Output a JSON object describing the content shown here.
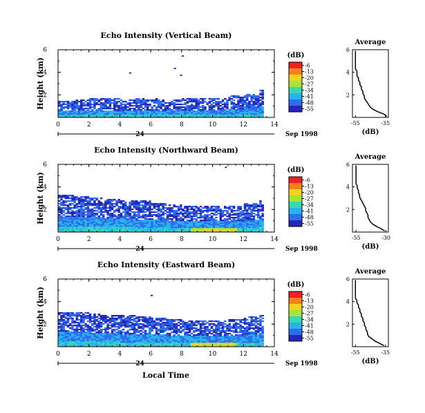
{
  "chart_data": [
    {
      "type": "heatmap",
      "title": "Echo Intensity (Vertical Beam)",
      "ylabel": "Height (km)",
      "x_ticks": [
        "0",
        "2",
        "4",
        "6",
        "8",
        "10",
        "12",
        "14"
      ],
      "y_ticks": [
        "2",
        "4",
        "6"
      ],
      "xlim": [
        0,
        14
      ],
      "ylim": [
        0,
        6
      ],
      "date_day": "24",
      "date_label": "Sep 1998",
      "data_end_hour": 13.2,
      "echo_top_km": [
        1.4,
        1.5,
        1.6,
        1.6,
        1.5,
        1.6,
        1.6,
        1.5,
        1.6,
        1.6,
        1.6,
        1.9,
        2.0,
        2.4
      ],
      "colorbar": {
        "unit": "(dB)",
        "ticks": [
          "-6",
          "-13",
          "-20",
          "-27",
          "-34",
          "-41",
          "-48",
          "-55"
        ]
      },
      "profile": {
        "title": "Average",
        "xlabel": "(dB)",
        "x_ticks": [
          "-55",
          "-35"
        ],
        "y_ticks": [
          "2",
          "4",
          "6"
        ],
        "xlim": [
          -57,
          -33
        ],
        "ylim": [
          0,
          6
        ],
        "height_km": [
          0.1,
          0.3,
          0.5,
          0.7,
          0.9,
          1.1,
          1.3,
          1.5,
          1.7,
          1.9,
          2.1,
          2.3,
          2.5,
          2.7,
          2.9,
          3.1,
          3.3,
          3.5,
          3.7,
          3.9,
          4.1,
          4.3,
          4.5,
          4.7,
          4.9,
          5.1,
          5.3,
          5.5,
          5.7,
          5.9
        ],
        "db": [
          -34,
          -36,
          -40,
          -43,
          -45,
          -46,
          -47,
          -48,
          -49,
          -49,
          -50,
          -50,
          -51,
          -51,
          -52,
          -52,
          -53,
          -53,
          -54,
          -54,
          -54,
          -55,
          -55,
          -55,
          -55,
          -55,
          -55,
          -55,
          -55,
          -55
        ]
      }
    },
    {
      "type": "heatmap",
      "title": "Echo Intensity (Northward Beam)",
      "ylabel": "Height (km)",
      "x_ticks": [
        "0",
        "2",
        "4",
        "6",
        "8",
        "10",
        "12",
        "14"
      ],
      "y_ticks": [
        "2",
        "4",
        "6"
      ],
      "xlim": [
        0,
        14
      ],
      "ylim": [
        0,
        6
      ],
      "date_day": "24",
      "date_label": "Sep 1998",
      "data_end_hour": 13.2,
      "echo_top_km": [
        3.2,
        3.1,
        3.0,
        2.9,
        2.8,
        2.7,
        2.5,
        2.4,
        2.3,
        2.3,
        2.3,
        2.3,
        2.5,
        2.8
      ],
      "colorbar": {
        "unit": "(dB)",
        "ticks": [
          "-6",
          "-13",
          "-20",
          "-27",
          "-34",
          "-41",
          "-48",
          "-55"
        ]
      },
      "profile": {
        "title": "Average",
        "xlabel": "(dB)",
        "x_ticks": [
          "-55",
          "-30"
        ],
        "y_ticks": [
          "2",
          "4",
          "6"
        ],
        "xlim": [
          -58,
          -28
        ],
        "ylim": [
          0,
          6
        ],
        "height_km": [
          0.1,
          0.3,
          0.5,
          0.7,
          0.9,
          1.1,
          1.3,
          1.5,
          1.7,
          1.9,
          2.1,
          2.3,
          2.5,
          2.7,
          2.9,
          3.1,
          3.3,
          3.5,
          3.7,
          3.9,
          4.1,
          4.3,
          4.5,
          4.7,
          4.9,
          5.1,
          5.3,
          5.5,
          5.7,
          5.9
        ],
        "db": [
          -31,
          -34,
          -38,
          -41,
          -43,
          -44,
          -45,
          -45,
          -46,
          -47,
          -47,
          -48,
          -49,
          -50,
          -51,
          -52,
          -52,
          -53,
          -53,
          -54,
          -54,
          -55,
          -55,
          -55,
          -55,
          -55,
          -55,
          -55,
          -55,
          -55
        ]
      }
    },
    {
      "type": "heatmap",
      "title": "Echo Intensity (Eastward Beam)",
      "ylabel": "Height (km)",
      "x_ticks": [
        "0",
        "2",
        "4",
        "6",
        "8",
        "10",
        "12",
        "14"
      ],
      "y_ticks": [
        "2",
        "4",
        "6"
      ],
      "xlim": [
        0,
        14
      ],
      "ylim": [
        0,
        6
      ],
      "date_day": "24",
      "date_label": "Sep 1998",
      "data_end_hour": 13.2,
      "echo_top_km": [
        3.0,
        3.0,
        2.9,
        2.8,
        2.7,
        2.6,
        2.5,
        2.4,
        2.3,
        2.3,
        2.3,
        2.4,
        2.6,
        2.8
      ],
      "colorbar": {
        "unit": "(dB)",
        "ticks": [
          "-6",
          "-13",
          "-20",
          "-27",
          "-34",
          "-41",
          "-48",
          "-55"
        ]
      },
      "profile": {
        "title": "Average",
        "xlabel": "(dB)",
        "x_ticks": [
          "-55",
          "-35"
        ],
        "y_ticks": [
          "2",
          "4",
          "6"
        ],
        "xlim": [
          -57,
          -33
        ],
        "ylim": [
          0,
          6
        ],
        "height_km": [
          0.1,
          0.3,
          0.5,
          0.7,
          0.9,
          1.1,
          1.3,
          1.5,
          1.7,
          1.9,
          2.1,
          2.3,
          2.5,
          2.7,
          2.9,
          3.1,
          3.3,
          3.5,
          3.7,
          3.9,
          4.1,
          4.3,
          4.5,
          4.7,
          4.9,
          5.1,
          5.3,
          5.5,
          5.7,
          5.9
        ],
        "db": [
          -36,
          -39,
          -42,
          -44,
          -46,
          -47,
          -47,
          -48,
          -48,
          -49,
          -49,
          -50,
          -50,
          -51,
          -51,
          -52,
          -52,
          -53,
          -53,
          -54,
          -54,
          -55,
          -55,
          -55,
          -55,
          -55,
          -55,
          -55,
          -55,
          -55
        ]
      }
    }
  ],
  "xlabel": "Local Time",
  "colormap": [
    "#ee2020",
    "#f5801e",
    "#f2d41e",
    "#a6e43a",
    "#3bd7b2",
    "#27b4ee",
    "#2f6ded",
    "#2626b8"
  ]
}
